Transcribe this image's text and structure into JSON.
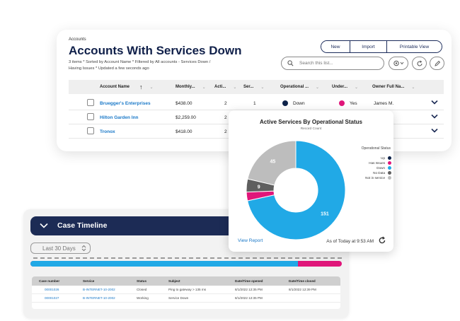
{
  "accounts": {
    "object_label": "Accounts",
    "title": "Accounts With Services Down",
    "info_line1": "3 items * Sorted by Account Name * Filtered by All accounts - Services Down /",
    "info_line2": "Having Issues * Updated a few seconds ago",
    "buttons": {
      "new": "New",
      "import": "Import",
      "printable": "Printable View"
    },
    "search_placeholder": "Search this list...",
    "columns": [
      "Account Name",
      "Monthly...",
      "Acti...",
      "Ser...",
      "Operational ...",
      "Under...",
      "Owner Full Na..."
    ],
    "sort_arrow": "↑",
    "rows": [
      {
        "name": "Bruegger's Enterprises",
        "monthly": "$438.00",
        "active": "2",
        "services": "1",
        "operational": "Down",
        "under": "Yes",
        "owner": "James M."
      },
      {
        "name": "Hilton Garden Inn",
        "monthly": "$2,259.00",
        "active": "2",
        "services": "",
        "operational": "",
        "under": "",
        "owner": ""
      },
      {
        "name": "Tronox",
        "monthly": "$418.00",
        "active": "2",
        "services": "",
        "operational": "",
        "under": "",
        "owner": ""
      }
    ],
    "colors": {
      "operational_down": "#0d2249",
      "under_yes": "#e0167a",
      "title": "#10204a",
      "link": "#1b79c8"
    }
  },
  "timeline": {
    "title": "Case Timeline",
    "filter": "Last 30 Days",
    "progress_fraction": 0.86,
    "colors": {
      "bar_main": "#21a9e6",
      "bar_rest": "#e0167a",
      "header": "#1c2b55"
    },
    "columns": [
      "Case number",
      "Service",
      "Status",
      "Subject",
      "Date/Time opened",
      "Date/Time closed"
    ],
    "rows": [
      {
        "case": "00001026",
        "service": "B-INTERNET-10-2002",
        "status": "Closed",
        "subject": "Ping to gateway > 135 ms",
        "opened": "8/1/2022 12:35 PM",
        "closed": "8/1/2022 12:39 PM"
      },
      {
        "case": "00001027",
        "service": "B-INTERNET-10-2002",
        "status": "Working",
        "subject": "Service Down",
        "opened": "8/1/2022 12:35 PM",
        "closed": ""
      }
    ]
  },
  "chart": {
    "view_report": "View Report",
    "as_of": "As of Today at 9:53 AM"
  },
  "chart_data": {
    "type": "pie",
    "title": "Active Services By Operational Status",
    "subtitle": "Record Count",
    "legend_title": "Operational Status",
    "legend_position": "right",
    "donut": true,
    "slices": [
      {
        "name": "Up",
        "value": 0,
        "color": "#0d2249"
      },
      {
        "name": "Has Issues",
        "value": 6,
        "color": "#e0167a"
      },
      {
        "name": "Down",
        "value": 151,
        "color": "#21a9e6"
      },
      {
        "name": "No Data",
        "value": 9,
        "color": "#5f5f5f"
      },
      {
        "name": "Not in service",
        "value": 45,
        "color": "#bdbdbd"
      }
    ],
    "data_labels": [
      {
        "slice": "Down",
        "text": "151"
      },
      {
        "slice": "No Data",
        "text": "9"
      },
      {
        "slice": "Not in service",
        "text": "45"
      }
    ]
  }
}
